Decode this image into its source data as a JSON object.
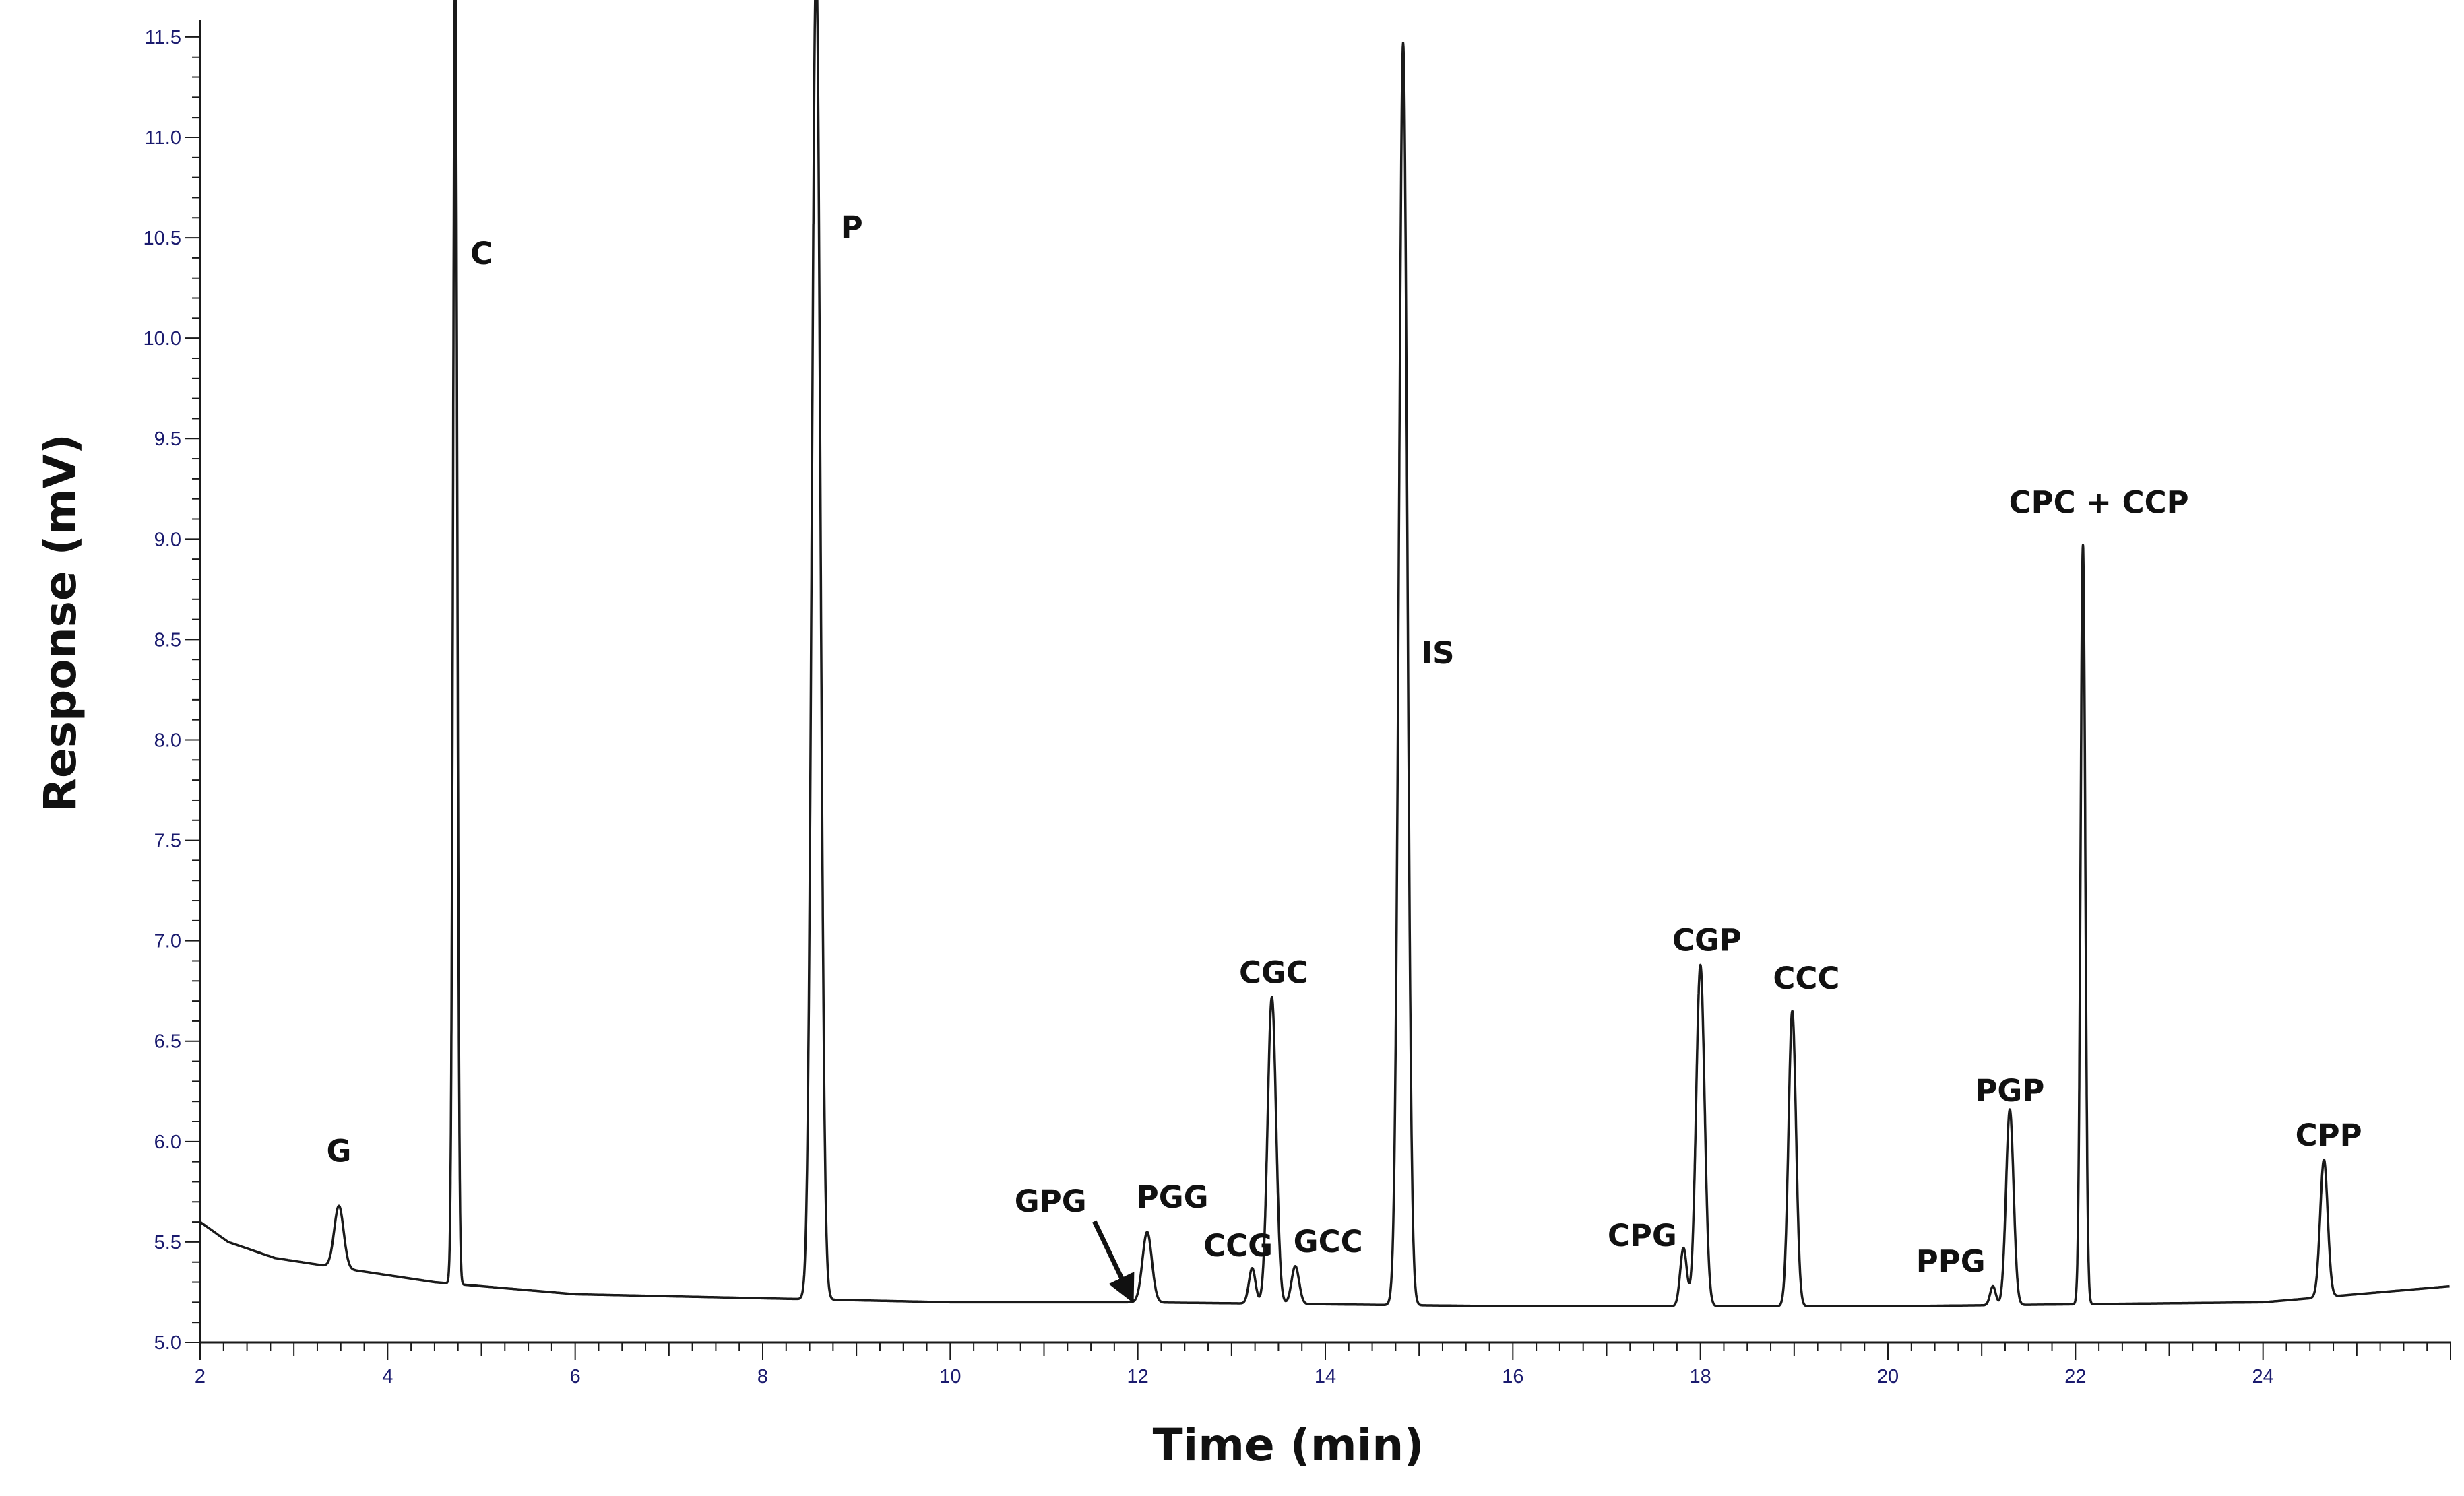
{
  "chart_data": {
    "type": "line",
    "title": "",
    "xlabel": "Time (min)",
    "ylabel": "Response (mV)",
    "xlim": [
      2,
      26
    ],
    "ylim": [
      5.0,
      11.55
    ],
    "grid": false,
    "legend": "none",
    "x_ticks": [
      {
        "value": 2,
        "label": "2"
      },
      {
        "value": 4,
        "label": "4"
      },
      {
        "value": 6,
        "label": "6"
      },
      {
        "value": 8,
        "label": "8"
      },
      {
        "value": 10,
        "label": "10"
      },
      {
        "value": 12,
        "label": "12"
      },
      {
        "value": 14,
        "label": "14"
      },
      {
        "value": 16,
        "label": "16"
      },
      {
        "value": 18,
        "label": "18"
      },
      {
        "value": 20,
        "label": "20"
      },
      {
        "value": 22,
        "label": "22"
      },
      {
        "value": 24,
        "label": "24"
      }
    ],
    "y_ticks": [
      {
        "value": 5.0,
        "label": "5.0"
      },
      {
        "value": 5.5,
        "label": "5.5"
      },
      {
        "value": 6.0,
        "label": "6.0"
      },
      {
        "value": 6.5,
        "label": "6.5"
      },
      {
        "value": 7.0,
        "label": "7.0"
      },
      {
        "value": 7.5,
        "label": "7.5"
      },
      {
        "value": 8.0,
        "label": "8.0"
      },
      {
        "value": 8.5,
        "label": "8.5"
      },
      {
        "value": 9.0,
        "label": "9.0"
      },
      {
        "value": 9.5,
        "label": "9.5"
      },
      {
        "value": 10.0,
        "label": "10.0"
      },
      {
        "value": 10.5,
        "label": "10.5"
      },
      {
        "value": 11.0,
        "label": "11.0"
      },
      {
        "value": 11.5,
        "label": "11.5"
      }
    ],
    "baseline": [
      {
        "x": 2.0,
        "y": 5.6
      },
      {
        "x": 2.3,
        "y": 5.5
      },
      {
        "x": 2.8,
        "y": 5.42
      },
      {
        "x": 3.5,
        "y": 5.37
      },
      {
        "x": 4.5,
        "y": 5.3
      },
      {
        "x": 6.0,
        "y": 5.24
      },
      {
        "x": 8.0,
        "y": 5.22
      },
      {
        "x": 10.0,
        "y": 5.2
      },
      {
        "x": 12.0,
        "y": 5.2
      },
      {
        "x": 16.0,
        "y": 5.18
      },
      {
        "x": 20.0,
        "y": 5.18
      },
      {
        "x": 24.0,
        "y": 5.2
      },
      {
        "x": 26.0,
        "y": 5.28
      }
    ],
    "peaks": [
      {
        "rt": 3.48,
        "height": 5.68,
        "width": 0.05,
        "label": "G"
      },
      {
        "rt": 4.72,
        "height": 11.9,
        "width": 0.022,
        "label": "C"
      },
      {
        "rt": 8.57,
        "height": 11.9,
        "width": 0.045,
        "label": "P"
      },
      {
        "rt": 12.1,
        "height": 5.55,
        "width": 0.05,
        "label": "PGG"
      },
      {
        "rt": 13.22,
        "height": 5.37,
        "width": 0.035,
        "label": "CCG"
      },
      {
        "rt": 13.43,
        "height": 6.72,
        "width": 0.045,
        "label": "CGC"
      },
      {
        "rt": 13.68,
        "height": 5.38,
        "width": 0.04,
        "label": "GCC"
      },
      {
        "rt": 14.83,
        "height": 11.47,
        "width": 0.045,
        "label": "IS"
      },
      {
        "rt": 17.82,
        "height": 5.47,
        "width": 0.035,
        "label": "CPG"
      },
      {
        "rt": 18.0,
        "height": 6.88,
        "width": 0.045,
        "label": "CGP"
      },
      {
        "rt": 18.98,
        "height": 6.65,
        "width": 0.04,
        "label": "CCC"
      },
      {
        "rt": 21.12,
        "height": 5.28,
        "width": 0.03,
        "label": "PPG"
      },
      {
        "rt": 21.3,
        "height": 6.16,
        "width": 0.04,
        "label": "PGP"
      },
      {
        "rt": 22.08,
        "height": 8.97,
        "width": 0.025,
        "label": "CPC + CCP"
      },
      {
        "rt": 24.65,
        "height": 5.91,
        "width": 0.04,
        "label": "CPP"
      }
    ],
    "annotations": [
      {
        "text": "G",
        "x": 3.48,
        "y": 5.9,
        "big": true
      },
      {
        "text": "C",
        "x": 5.0,
        "y": 10.37
      },
      {
        "text": "P",
        "x": 8.95,
        "y": 10.5
      },
      {
        "text": "GPG",
        "x": 11.07,
        "y": 5.65,
        "arrow_to": [
          11.93,
          5.22
        ]
      },
      {
        "text": "PGG",
        "x": 12.37,
        "y": 5.67
      },
      {
        "text": "CCG",
        "x": 13.07,
        "y": 5.43
      },
      {
        "text": "GCC",
        "x": 14.03,
        "y": 5.45
      },
      {
        "text": "CGC",
        "x": 13.45,
        "y": 6.79
      },
      {
        "text": "IS",
        "x": 15.2,
        "y": 8.38
      },
      {
        "text": "CPG",
        "x": 17.38,
        "y": 5.48
      },
      {
        "text": "CGP",
        "x": 18.07,
        "y": 6.95
      },
      {
        "text": "CCC",
        "x": 19.13,
        "y": 6.76
      },
      {
        "text": "PPG",
        "x": 20.67,
        "y": 5.35
      },
      {
        "text": "PGP",
        "x": 21.3,
        "y": 6.2
      },
      {
        "text": "CPC + CCP",
        "x": 22.25,
        "y": 9.13
      },
      {
        "text": "CPP",
        "x": 24.7,
        "y": 5.98
      }
    ],
    "colors": {
      "trace": "#1a1a1a",
      "axis": "#1a1a1a",
      "tick_label": "#1a1a6e",
      "text": "#111111"
    }
  }
}
